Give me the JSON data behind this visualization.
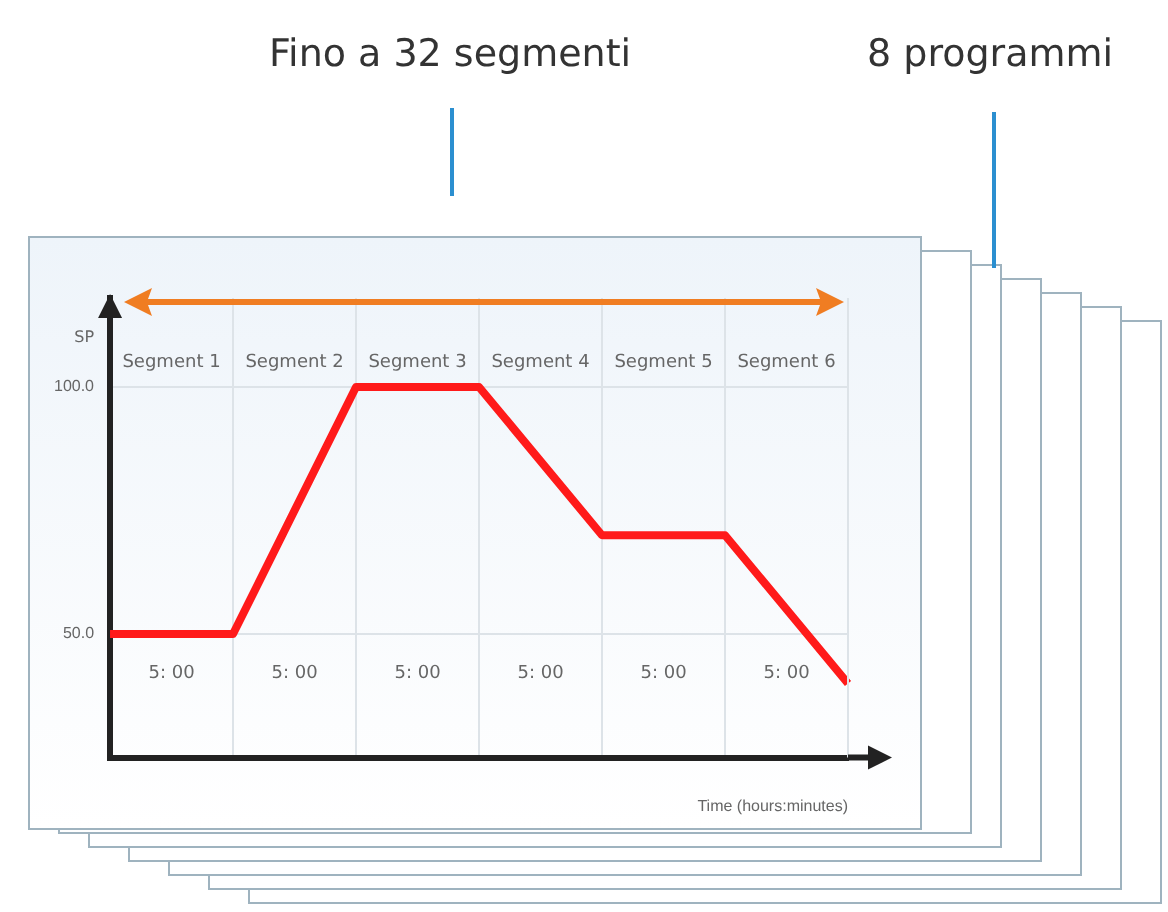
{
  "chart_data": {
    "type": "line",
    "xlabel": "Time (hours:minutes)",
    "ylabel": "SP",
    "categories": [
      null,
      null,
      null,
      null,
      null,
      null,
      null
    ],
    "series": [
      {
        "color": "#ff1a1a",
        "values": [
          50,
          50,
          100,
          100,
          70,
          70,
          40
        ]
      }
    ],
    "ylim": [
      25,
      118
    ],
    "yticks": [
      {
        "value": 50,
        "label": "50.0"
      },
      {
        "value": 100,
        "label": "100.0"
      }
    ],
    "grid": true,
    "legend": false,
    "marker": "none",
    "line_style": "solid",
    "annotations": [
      "Fino a 32 segmenti",
      "8 programmi",
      "Segment 1",
      "Segment 2",
      "Segment 3",
      "Segment 4",
      "Segment 5",
      "Segment 6",
      "5: 00",
      "5: 00",
      "5: 00",
      "5: 00",
      "5: 00",
      "5: 00"
    ]
  }
}
